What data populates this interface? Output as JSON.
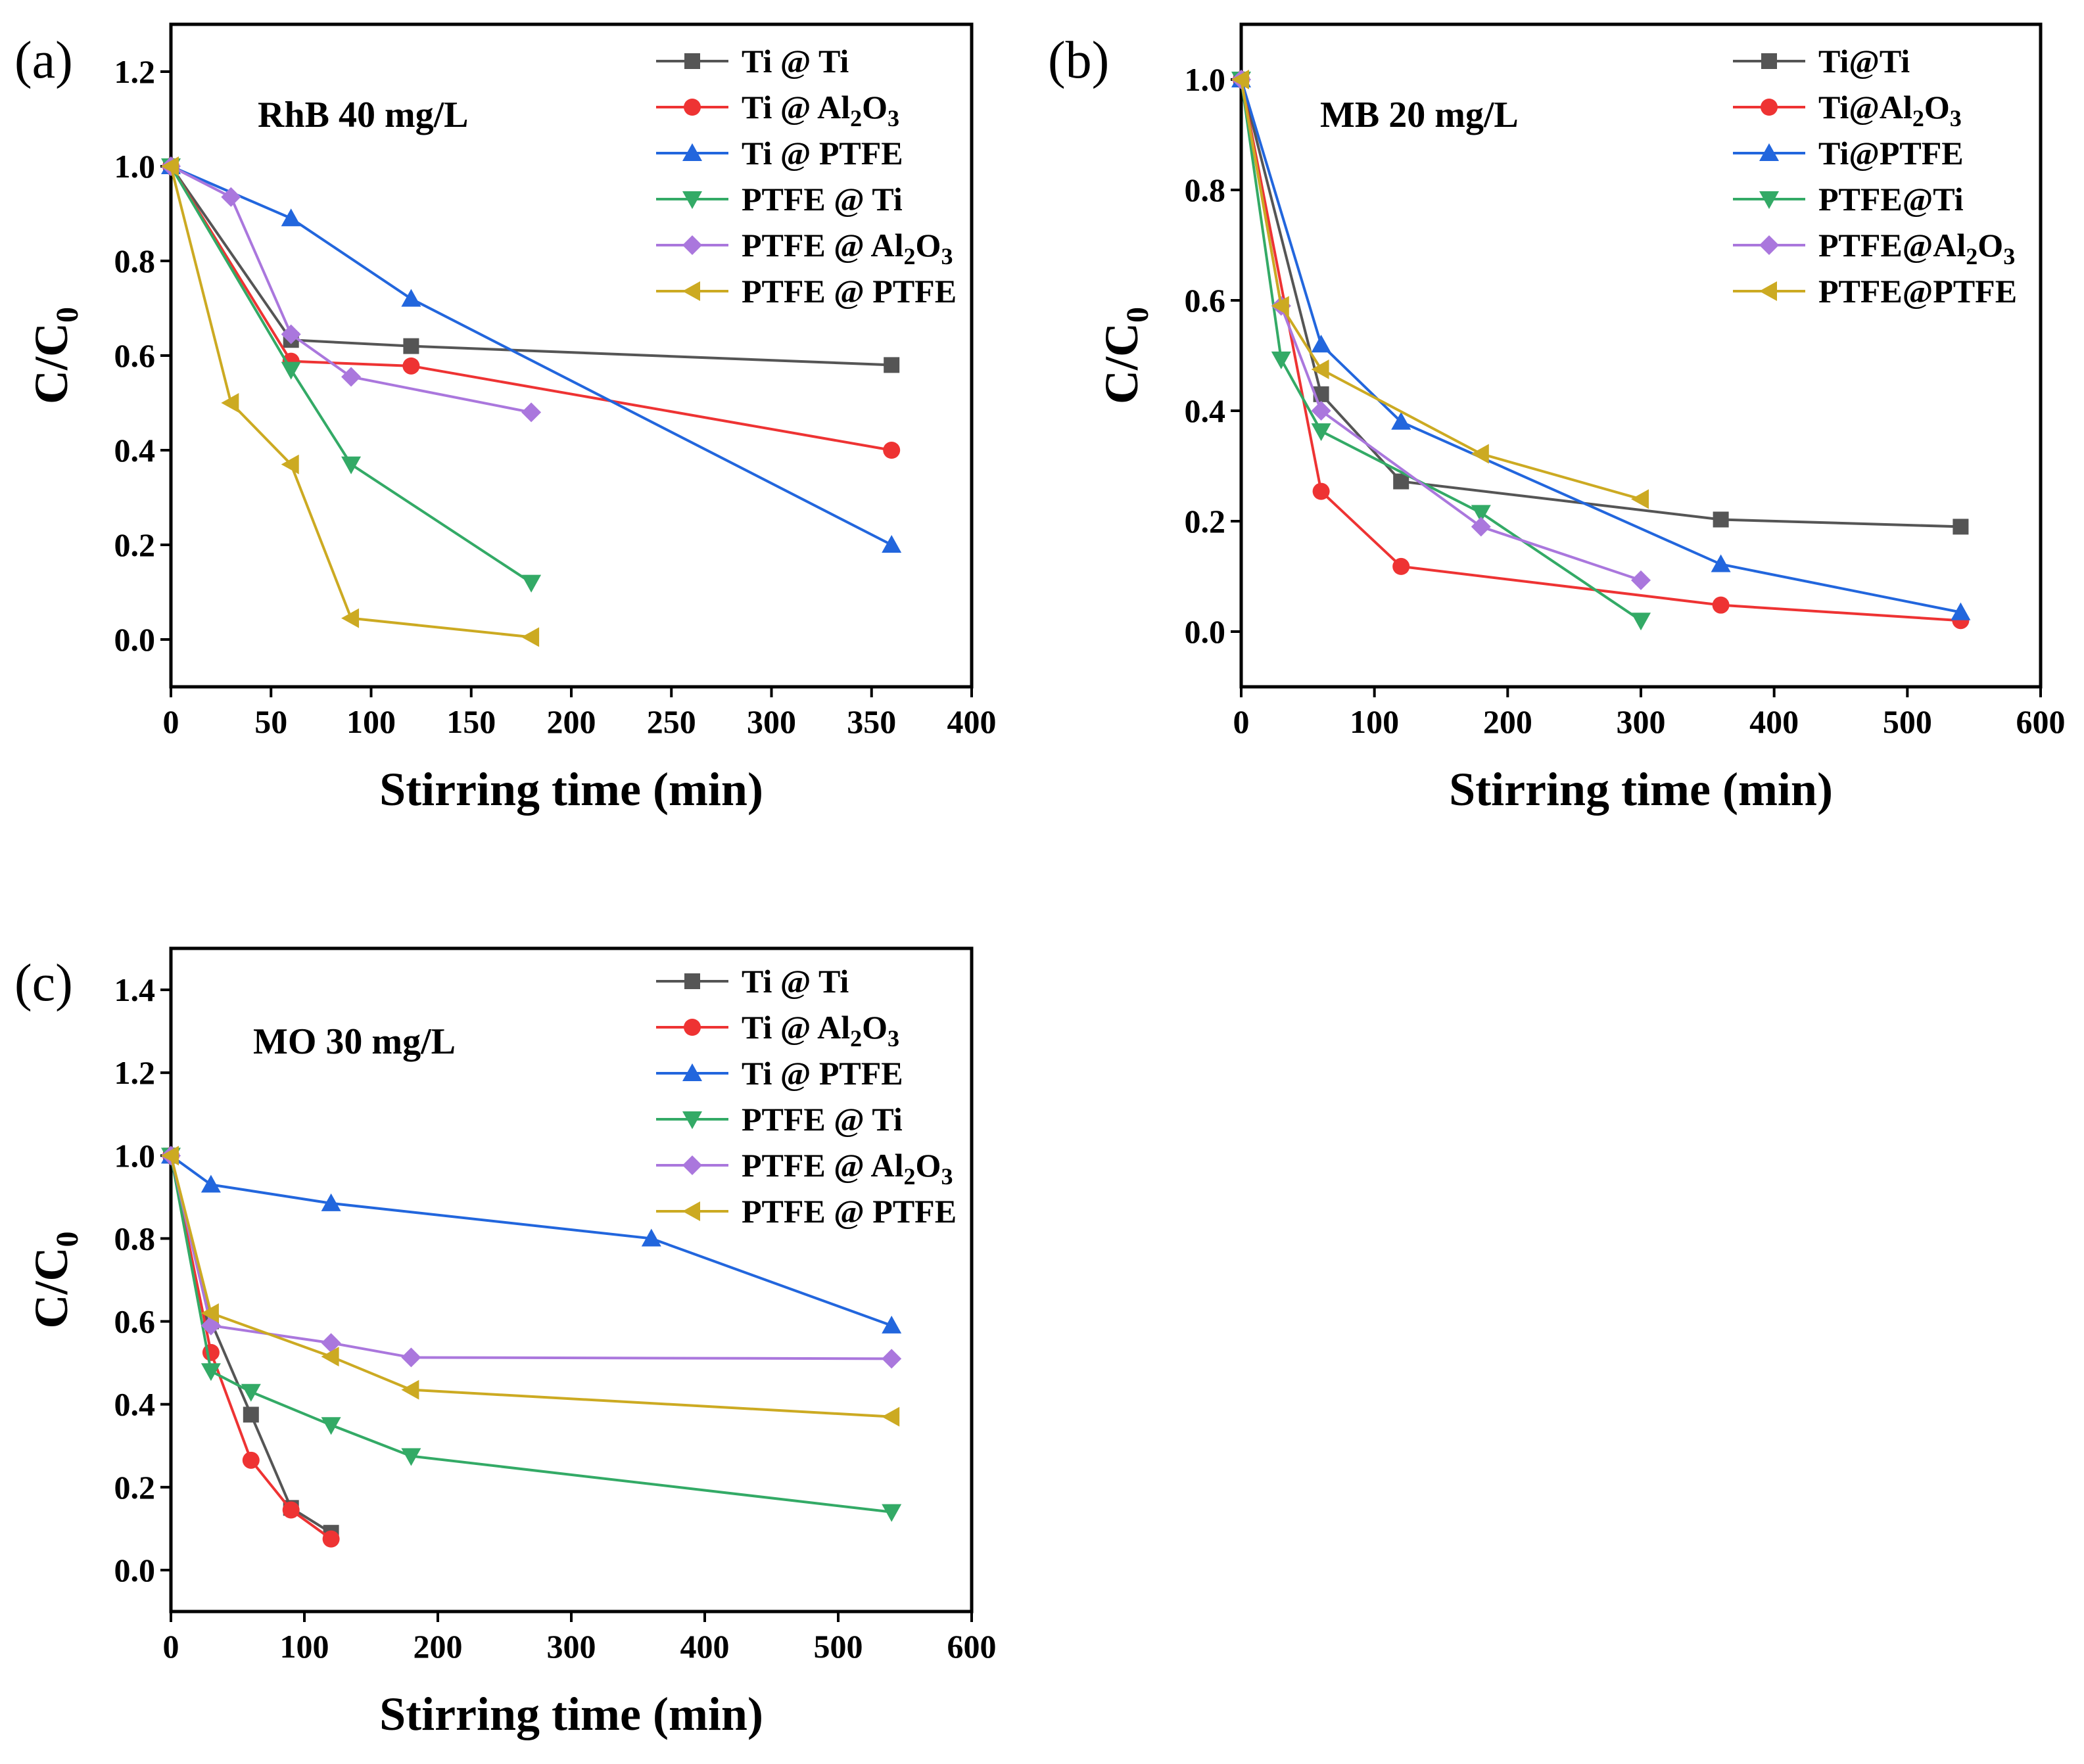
{
  "chart_data": [
    {
      "type": "line",
      "panel_label": "(a)",
      "title": "RhB 40 mg/L",
      "xlabel": "Stirring time (min)",
      "ylabel": "C/C",
      "ylabel_sub": "0",
      "xlim": [
        0,
        400
      ],
      "ylim": [
        -0.1,
        1.3
      ],
      "xticks": [
        0,
        50,
        100,
        150,
        200,
        250,
        300,
        350,
        400
      ],
      "yticks": [
        0.0,
        0.2,
        0.4,
        0.6,
        0.8,
        1.0,
        1.2
      ],
      "legend_position": "top-right",
      "series": [
        {
          "name": "Ti @ Ti",
          "legend": [
            "Ti @ Ti",
            "",
            ""
          ],
          "color": "#555555",
          "marker": "square",
          "x": [
            0,
            60,
            120,
            360
          ],
          "y": [
            1.0,
            0.633,
            0.62,
            0.58
          ]
        },
        {
          "name": "Ti @ Al2O3",
          "legend": [
            "Ti @ Al",
            "2",
            "O",
            "3"
          ],
          "color": "#ee3333",
          "marker": "circle",
          "x": [
            0,
            60,
            120,
            360
          ],
          "y": [
            1.0,
            0.588,
            0.578,
            0.4
          ]
        },
        {
          "name": "Ti @ PTFE",
          "legend": [
            "Ti @ PTFE",
            "",
            ""
          ],
          "color": "#2266dd",
          "marker": "triangle-up",
          "x": [
            0,
            60,
            120,
            360
          ],
          "y": [
            1.0,
            0.89,
            0.72,
            0.2
          ]
        },
        {
          "name": "PTFE @ Ti",
          "legend": [
            "PTFE @ Ti",
            "",
            ""
          ],
          "color": "#33aa66",
          "marker": "triangle-down",
          "x": [
            0,
            60,
            90,
            180
          ],
          "y": [
            1.0,
            0.57,
            0.37,
            0.12
          ]
        },
        {
          "name": "PTFE @ Al2O3",
          "legend": [
            "PTFE @ Al",
            "2",
            "O",
            "3"
          ],
          "color": "#aa77dd",
          "marker": "diamond",
          "x": [
            0,
            30,
            60,
            90,
            180
          ],
          "y": [
            1.0,
            0.935,
            0.645,
            0.555,
            0.48
          ]
        },
        {
          "name": "PTFE @ PTFE",
          "legend": [
            "PTFE @ PTFE",
            "",
            ""
          ],
          "color": "#ccaa22",
          "marker": "triangle-left",
          "x": [
            0,
            30,
            60,
            90,
            180
          ],
          "y": [
            1.0,
            0.5,
            0.37,
            0.045,
            0.005
          ]
        }
      ]
    },
    {
      "type": "line",
      "panel_label": "(b)",
      "title": "MB 20 mg/L",
      "xlabel": "Stirring time (min)",
      "ylabel": "C/C",
      "ylabel_sub": "0",
      "xlim": [
        0,
        600
      ],
      "ylim": [
        -0.1,
        1.1
      ],
      "xticks": [
        0,
        100,
        200,
        300,
        400,
        500,
        600
      ],
      "yticks": [
        0.0,
        0.2,
        0.4,
        0.6,
        0.8,
        1.0
      ],
      "legend_position": "top-right",
      "series": [
        {
          "name": "Ti@Ti",
          "legend": [
            "Ti@Ti",
            "",
            ""
          ],
          "color": "#555555",
          "marker": "square",
          "x": [
            0,
            60,
            120,
            360,
            540
          ],
          "y": [
            1.0,
            0.43,
            0.272,
            0.203,
            0.19
          ]
        },
        {
          "name": "Ti@Al2O3",
          "legend": [
            "Ti@Al",
            "2",
            "O",
            "3"
          ],
          "color": "#ee3333",
          "marker": "circle",
          "x": [
            0,
            60,
            120,
            360,
            540
          ],
          "y": [
            1.0,
            0.254,
            0.118,
            0.048,
            0.02
          ]
        },
        {
          "name": "Ti@PTFE",
          "legend": [
            "Ti@PTFE",
            "",
            ""
          ],
          "color": "#2266dd",
          "marker": "triangle-up",
          "x": [
            0,
            60,
            120,
            360,
            540
          ],
          "y": [
            1.0,
            0.52,
            0.38,
            0.122,
            0.035
          ]
        },
        {
          "name": "PTFE@Ti",
          "legend": [
            "PTFE@Ti",
            "",
            ""
          ],
          "color": "#33aa66",
          "marker": "triangle-down",
          "x": [
            0,
            30,
            60,
            180,
            300
          ],
          "y": [
            1.0,
            0.493,
            0.363,
            0.215,
            0.02
          ]
        },
        {
          "name": "PTFE@Al2O3",
          "legend": [
            "PTFE@Al",
            "2",
            "O",
            "3"
          ],
          "color": "#aa77dd",
          "marker": "diamond",
          "x": [
            0,
            30,
            60,
            180,
            300
          ],
          "y": [
            1.0,
            0.59,
            0.4,
            0.19,
            0.093
          ]
        },
        {
          "name": "PTFE@PTFE",
          "legend": [
            "PTFE@PTFE",
            "",
            ""
          ],
          "color": "#ccaa22",
          "marker": "triangle-left",
          "x": [
            0,
            30,
            60,
            180,
            300
          ],
          "y": [
            1.0,
            0.59,
            0.475,
            0.322,
            0.24
          ]
        }
      ]
    },
    {
      "type": "line",
      "panel_label": "(c)",
      "title": "MO 30 mg/L",
      "xlabel": "Stirring time (min)",
      "ylabel": "C/C",
      "ylabel_sub": "0",
      "xlim": [
        0,
        600
      ],
      "ylim": [
        -0.1,
        1.5
      ],
      "xticks": [
        0,
        100,
        200,
        300,
        400,
        500,
        600
      ],
      "yticks": [
        0.0,
        0.2,
        0.4,
        0.6,
        0.8,
        1.0,
        1.2,
        1.4
      ],
      "legend_position": "top-right",
      "series": [
        {
          "name": "Ti @ Ti",
          "legend": [
            "Ti @ Ti",
            "",
            ""
          ],
          "color": "#555555",
          "marker": "square",
          "x": [
            0,
            30,
            60,
            90,
            120
          ],
          "y": [
            1.0,
            0.6,
            0.375,
            0.15,
            0.09
          ]
        },
        {
          "name": "Ti @ Al2O3",
          "legend": [
            "Ti @ Al",
            "2",
            "O",
            "3"
          ],
          "color": "#ee3333",
          "marker": "circle",
          "x": [
            0,
            30,
            60,
            90,
            120
          ],
          "y": [
            1.0,
            0.525,
            0.265,
            0.145,
            0.075
          ]
        },
        {
          "name": "Ti @ PTFE",
          "legend": [
            "Ti @ PTFE",
            "",
            ""
          ],
          "color": "#2266dd",
          "marker": "triangle-up",
          "x": [
            0,
            30,
            120,
            360,
            540
          ],
          "y": [
            1.0,
            0.93,
            0.885,
            0.8,
            0.59
          ]
        },
        {
          "name": "PTFE @ Ti",
          "legend": [
            "PTFE @ Ti",
            "",
            ""
          ],
          "color": "#33aa66",
          "marker": "triangle-down",
          "x": [
            0,
            30,
            60,
            120,
            180,
            540
          ],
          "y": [
            1.0,
            0.48,
            0.43,
            0.35,
            0.275,
            0.14
          ]
        },
        {
          "name": "PTFE @ Al2O3",
          "legend": [
            "PTFE @ Al",
            "2",
            "O",
            "3"
          ],
          "color": "#aa77dd",
          "marker": "diamond",
          "x": [
            0,
            30,
            120,
            180,
            540
          ],
          "y": [
            1.0,
            0.59,
            0.548,
            0.513,
            0.51
          ]
        },
        {
          "name": "PTFE @ PTFE",
          "legend": [
            "PTFE @ PTFE",
            "",
            ""
          ],
          "color": "#ccaa22",
          "marker": "triangle-left",
          "x": [
            0,
            30,
            120,
            180,
            540
          ],
          "y": [
            1.0,
            0.62,
            0.515,
            0.435,
            0.37
          ]
        }
      ]
    }
  ]
}
